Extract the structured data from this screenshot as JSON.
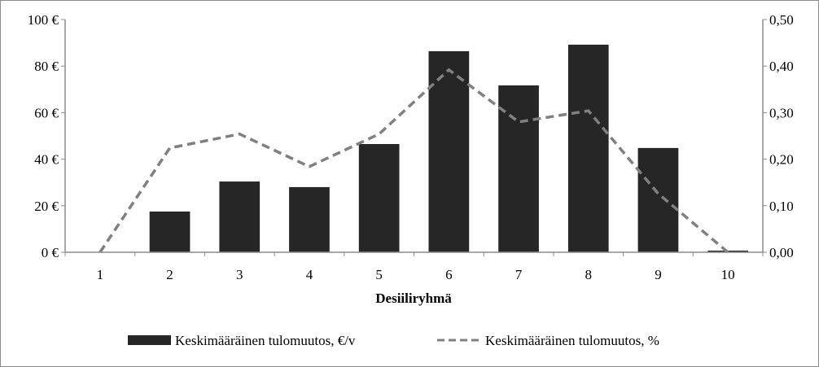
{
  "chart_data": {
    "type": "bar",
    "xlabel": "Desiiliryhmä",
    "categories": [
      "1",
      "2",
      "3",
      "4",
      "5",
      "6",
      "7",
      "8",
      "9",
      "10"
    ],
    "y_left": {
      "ylim": [
        0,
        100
      ],
      "ticks": [
        "0 €",
        "20 €",
        "40 €",
        "60 €",
        "80 €",
        "100 €"
      ],
      "tick_values": [
        0,
        20,
        40,
        60,
        80,
        100
      ]
    },
    "y_right": {
      "ylim": [
        0,
        0.5
      ],
      "ticks": [
        "0,00",
        "0,10",
        "0,20",
        "0,30",
        "0,40",
        "0,50"
      ],
      "tick_values": [
        0,
        0.1,
        0.2,
        0.3,
        0.4,
        0.5
      ]
    },
    "series": [
      {
        "name": "Keskimääräinen tulomuutos, €/v",
        "type": "bar",
        "axis": "left",
        "color": "#262626",
        "values": [
          0,
          17.5,
          30.4,
          28.0,
          46.5,
          86.4,
          71.7,
          89.2,
          44.8,
          0.7
        ]
      },
      {
        "name": "Keskimääräinen tulomuutos, %",
        "type": "line",
        "style": "dashed",
        "axis": "right",
        "color": "#808080",
        "values": [
          0,
          0.224,
          0.254,
          0.184,
          0.254,
          0.392,
          0.28,
          0.304,
          0.126,
          0
        ]
      }
    ],
    "grid": false,
    "legend": "bottom"
  }
}
